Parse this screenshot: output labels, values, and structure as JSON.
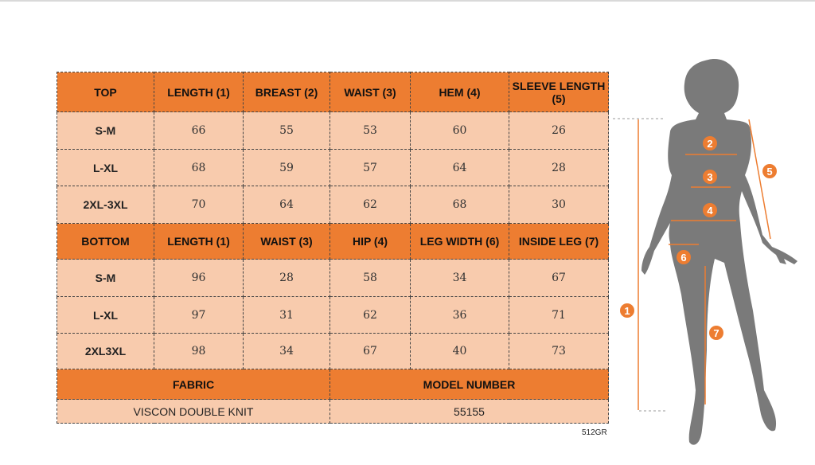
{
  "colors": {
    "header": "#ED7D31",
    "cell": "#F8CBAD",
    "silhouette": "#7a7a7a",
    "arrow": "#ED7D31"
  },
  "top": {
    "headers": [
      "TOP",
      "LENGTH (1)",
      "BREAST (2)",
      "WAIST (3)",
      "HEM (4)",
      "SLEEVE LENGTH (5)"
    ],
    "rows": [
      {
        "size": "S-M",
        "values": [
          "66",
          "55",
          "53",
          "60",
          "26"
        ]
      },
      {
        "size": "L-XL",
        "values": [
          "68",
          "59",
          "57",
          "64",
          "28"
        ]
      },
      {
        "size": "2XL-3XL",
        "values": [
          "70",
          "64",
          "62",
          "68",
          "30"
        ]
      }
    ]
  },
  "bottom": {
    "headers": [
      "BOTTOM",
      "LENGTH (1)",
      "WAIST (3)",
      "HIP (4)",
      "LEG WIDTH (6)",
      "INSIDE LEG (7)"
    ],
    "rows": [
      {
        "size": "S-M",
        "values": [
          "96",
          "28",
          "58",
          "34",
          "67"
        ]
      },
      {
        "size": "L-XL",
        "values": [
          "97",
          "31",
          "62",
          "36",
          "71"
        ]
      },
      {
        "size": "2XL3XL",
        "values": [
          "98",
          "34",
          "67",
          "40",
          "73"
        ]
      }
    ]
  },
  "footer": {
    "fabric_label": "FABRIC",
    "model_label": "MODEL NUMBER",
    "fabric": "VISCON DOUBLE KNIT",
    "model": "55155"
  },
  "code": "512GR",
  "diagram": {
    "markers": [
      "1",
      "2",
      "3",
      "4",
      "5",
      "6",
      "7"
    ]
  }
}
